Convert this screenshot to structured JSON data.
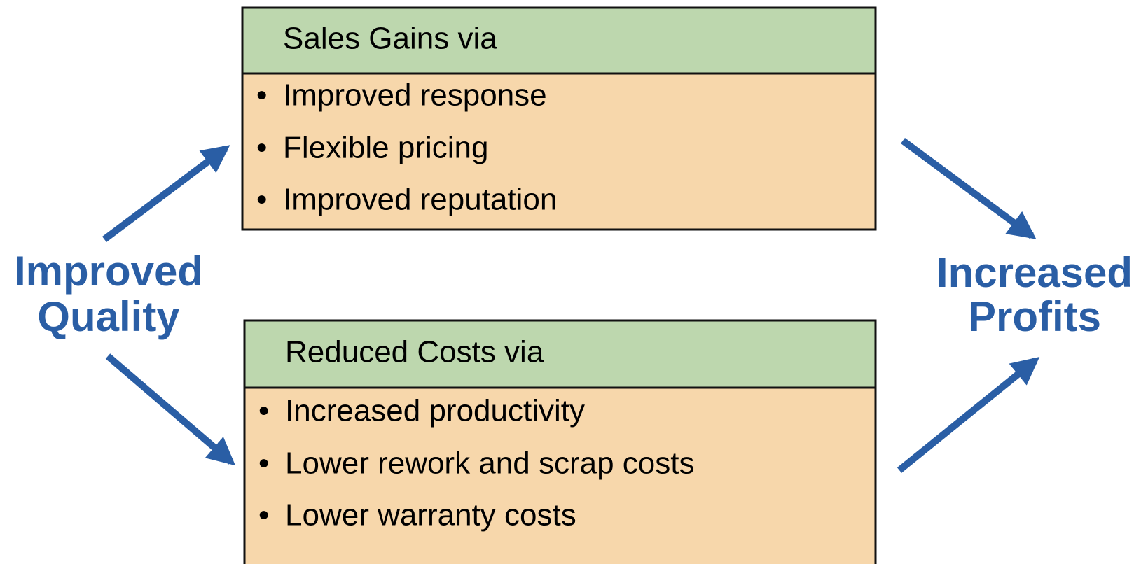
{
  "left_label": [
    "Improved",
    "Quality"
  ],
  "right_label": [
    "Increased",
    "Profits"
  ],
  "boxes": [
    {
      "title": "Sales Gains via",
      "items": [
        "Improved response",
        "Flexible pricing",
        "Improved reputation"
      ]
    },
    {
      "title": "Reduced Costs via",
      "items": [
        "Increased productivity",
        "Lower rework and scrap costs",
        "Lower warranty costs"
      ]
    }
  ]
}
